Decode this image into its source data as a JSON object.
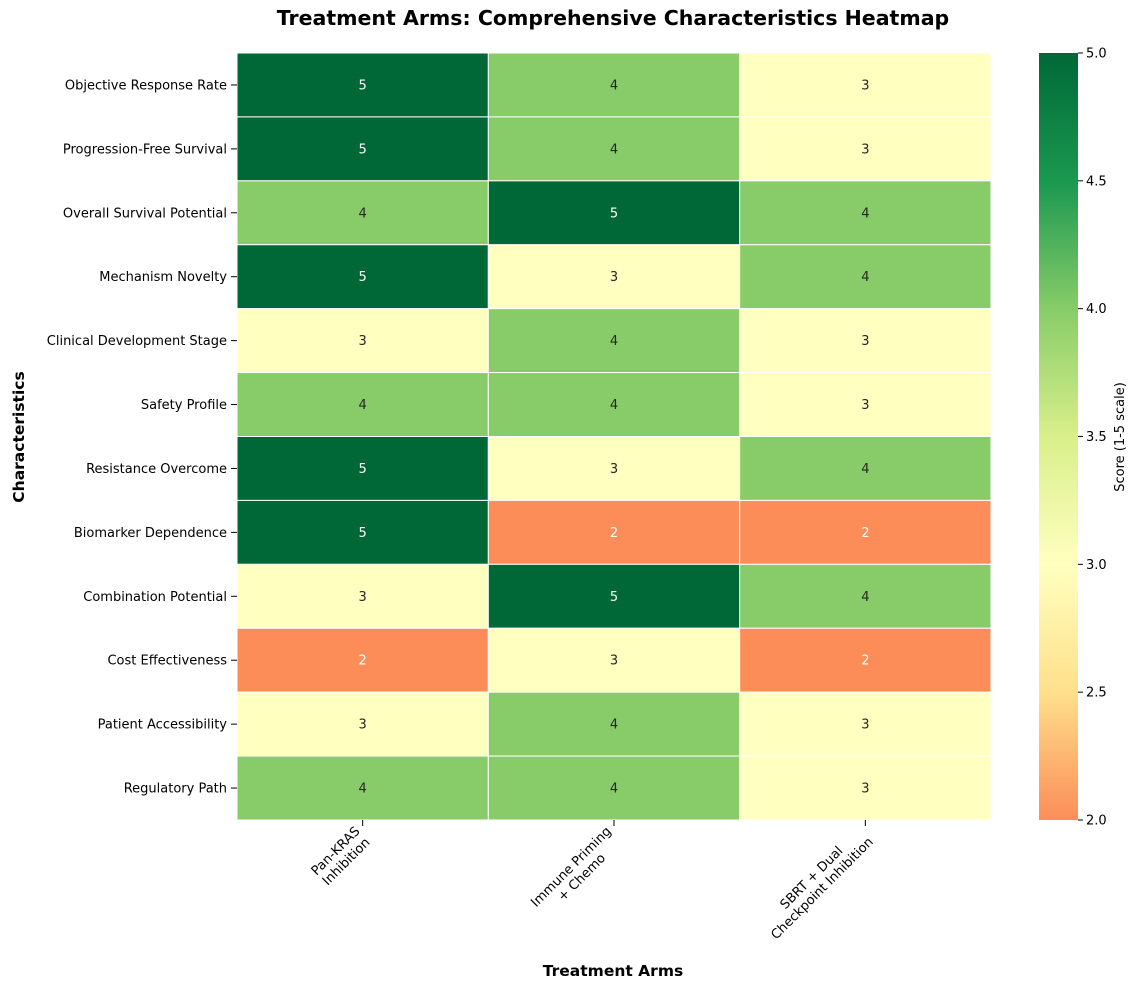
{
  "chart_data": {
    "type": "heatmap",
    "title": "Treatment Arms: Comprehensive Characteristics Heatmap",
    "xlabel": "Treatment Arms",
    "ylabel": "Characteristics",
    "columns": [
      [
        "Pan-KRAS",
        "Inhibition"
      ],
      [
        "Immune Priming",
        "+ Chemo"
      ],
      [
        "SBRT + Dual",
        "Checkpoint Inhibition"
      ]
    ],
    "rows": [
      "Objective Response Rate",
      "Progression-Free Survival",
      "Overall Survival Potential",
      "Mechanism Novelty",
      "Clinical Development Stage",
      "Safety Profile",
      "Resistance Overcome",
      "Biomarker Dependence",
      "Combination Potential",
      "Cost Effectiveness",
      "Patient Accessibility",
      "Regulatory Path"
    ],
    "values": [
      [
        5,
        4,
        3
      ],
      [
        5,
        4,
        3
      ],
      [
        4,
        5,
        4
      ],
      [
        5,
        3,
        4
      ],
      [
        3,
        4,
        3
      ],
      [
        4,
        4,
        3
      ],
      [
        5,
        3,
        4
      ],
      [
        5,
        2,
        2
      ],
      [
        3,
        5,
        4
      ],
      [
        2,
        3,
        2
      ],
      [
        3,
        4,
        3
      ],
      [
        4,
        4,
        3
      ]
    ],
    "colorbar": {
      "label": "Score (1-5 scale)",
      "range": [
        2.0,
        5.0
      ],
      "ticks": [
        "2.0",
        "2.5",
        "3.0",
        "3.5",
        "4.0",
        "4.5",
        "5.0"
      ],
      "colormap": "RdYlGn"
    },
    "grid": false
  }
}
